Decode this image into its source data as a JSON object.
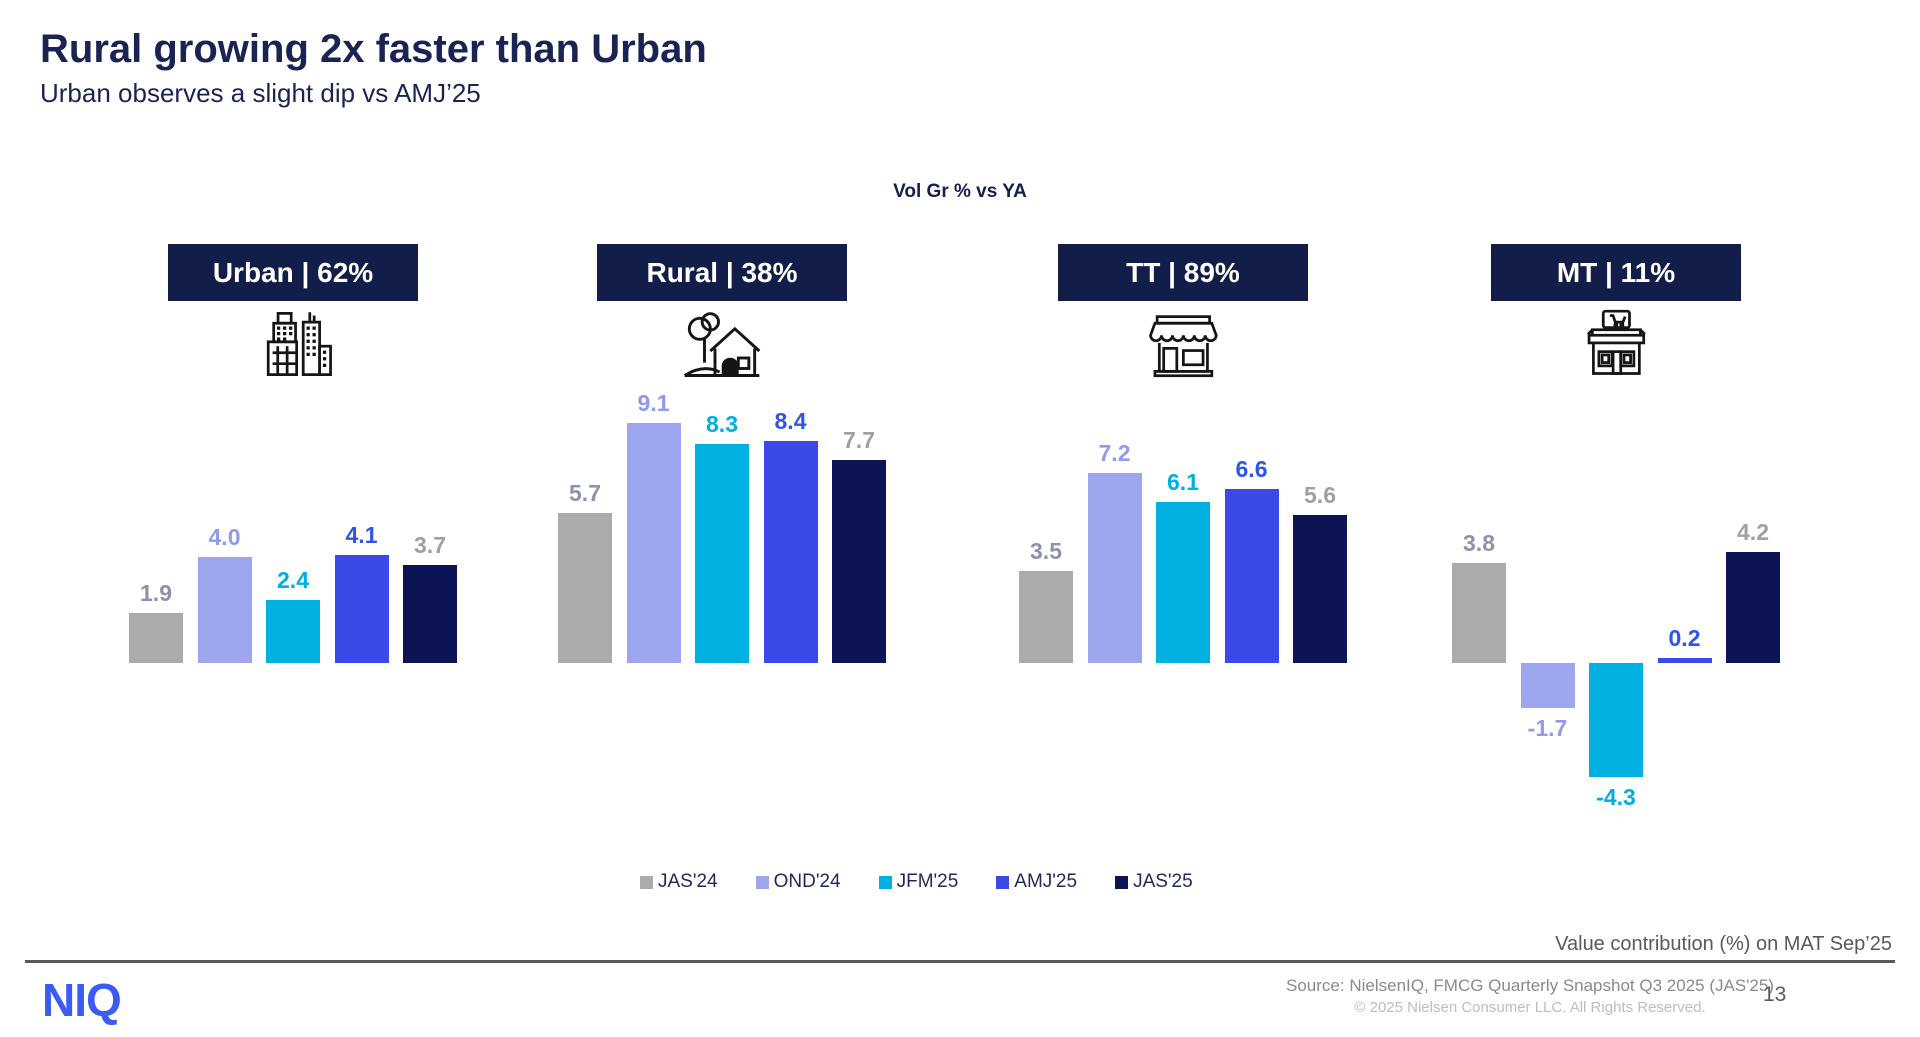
{
  "header": {
    "title": "Rural growing 2x faster than Urban",
    "subtitle": "Urban observes a slight dip vs AMJ’25"
  },
  "chart_data": {
    "type": "bar",
    "title": "Vol Gr % vs YA",
    "categories": [
      "JAS'24",
      "OND'24",
      "JFM'25",
      "AMJ'25",
      "JAS'25"
    ],
    "groups": [
      {
        "label": "Urban | 62%",
        "icon": "city-buildings-icon",
        "values": [
          1.9,
          4.0,
          2.4,
          4.1,
          3.7
        ]
      },
      {
        "label": "Rural | 38%",
        "icon": "rural-house-icon",
        "values": [
          5.7,
          9.1,
          8.3,
          8.4,
          7.7
        ]
      },
      {
        "label": "TT | 89%",
        "icon": "traditional-trade-store-icon",
        "values": [
          3.5,
          7.2,
          6.1,
          6.6,
          5.6
        ]
      },
      {
        "label": "MT | 11%",
        "icon": "modern-trade-store-icon",
        "values": [
          3.8,
          -1.7,
          -4.3,
          0.2,
          4.2
        ]
      }
    ],
    "ylim": [
      -5,
      10
    ],
    "axis": "hidden",
    "grid": false,
    "legend_position": "bottom",
    "value_labels": true
  },
  "colors": {
    "series": [
      "#ababab",
      "#9da5ef",
      "#00b0e0",
      "#3a4ae6",
      "#0d1456"
    ],
    "value_label_colors": [
      "#8c92ae",
      "#8f9aee",
      "#00aee0",
      "#2f55e8",
      "#a0a0a0"
    ],
    "badge_background": "#131d49",
    "navy_text": "#1a2454",
    "footer_gray": "#595959",
    "logo_blue": "#3a5bf5"
  },
  "footer": {
    "note": "Value contribution (%) on MAT Sep’25",
    "logo_text": "NIQ",
    "source_line1": "Source: NielsenIQ, FMCG Quarterly Snapshot Q3 2025 (JAS'25)",
    "source_line2": "© 2025 Nielsen Consumer LLC. All Rights Reserved.",
    "page_number": "13"
  }
}
